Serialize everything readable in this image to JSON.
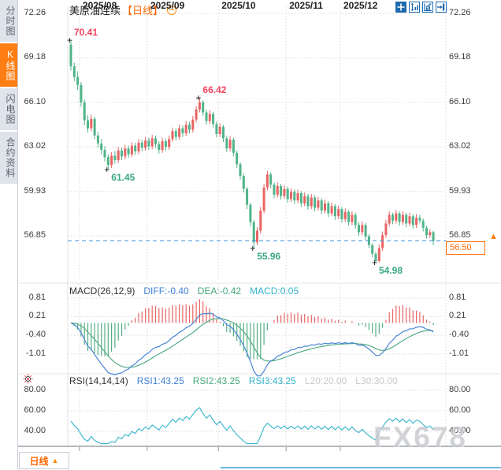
{
  "app": {
    "title": "美原油连续",
    "period_tag": "【日线】",
    "watermark": "FX678"
  },
  "sidebar": {
    "items": [
      {
        "key": "fenshitu",
        "label": "分时图",
        "active": false
      },
      {
        "key": "kxiantu",
        "label": "K线图",
        "active": true
      },
      {
        "key": "shandiantu",
        "label": "闪电图",
        "active": false
      },
      {
        "key": "heyueziliao",
        "label": "合约资料",
        "active": false
      }
    ]
  },
  "toolbar": {
    "icons": [
      "crosshair",
      "axis-scale",
      "auto-scale",
      "pan-right"
    ]
  },
  "period_selector": {
    "label": "日线",
    "arrow": "▲"
  },
  "current_price": {
    "label": "56.50",
    "value": 56.5
  },
  "macd": {
    "title": "MACD(26,12,9)",
    "diff": "DIFF:-0.40",
    "dea": "DEA:-0.42",
    "macd": "MACD:0.05",
    "axis_labels": [
      "0.81",
      "0.21",
      "-0.40",
      "-1.01"
    ],
    "axis_values": [
      0.81,
      0.21,
      -0.4,
      -1.01
    ]
  },
  "rsi": {
    "title": "RSI(14,14,14)",
    "rsi1": "RSI1:43.25",
    "rsi2": "RSI2:43.25",
    "rsi3": "RSI3:43.25",
    "l20": "L20:20.00",
    "l30": "L30:30.00",
    "axis_labels": [
      "80.00",
      "60.00",
      "40.00"
    ],
    "axis_values": [
      80,
      60,
      40
    ]
  },
  "colors": {
    "up_candle": "#e86463",
    "down_candle": "#4fb489",
    "accent_orange": "#ff6a00",
    "line_blue": "#4a86d5",
    "line_green": "#53ae84",
    "line_cyan": "#35b3cc",
    "icon_blue": "#1e6ab0",
    "grid": "#d9d9d9",
    "label_red": "#f0435c",
    "label_green": "#3aa786",
    "current_line_blue": "#3f8fe0"
  },
  "chart_data": {
    "type": "candlestick",
    "symbol": "美原油连续",
    "period": "日线",
    "y_axis_labels": [
      "72.26",
      "69.18",
      "66.10",
      "63.02",
      "59.93",
      "56.85"
    ],
    "y_axis_values": [
      72.26,
      69.18,
      66.1,
      63.02,
      59.93,
      56.85
    ],
    "months": {
      "labels": [
        "2025/08",
        "2025/09",
        "2025/10",
        "2025/11",
        "2025/12"
      ],
      "boundary_indices": [
        3,
        23,
        44,
        64,
        80
      ]
    },
    "current_price": 56.5,
    "candle_format": [
      "open",
      "high",
      "low",
      "close"
    ],
    "candles": [
      [
        70.1,
        70.41,
        68.3,
        68.6
      ],
      [
        68.6,
        68.85,
        67.55,
        67.85
      ],
      [
        67.85,
        68.25,
        66.95,
        67.3
      ],
      [
        67.3,
        67.5,
        65.8,
        66.1
      ],
      [
        66.1,
        66.3,
        64.5,
        64.85
      ],
      [
        64.85,
        65.2,
        64.0,
        64.3
      ],
      [
        64.3,
        65.25,
        64.1,
        64.95
      ],
      [
        64.95,
        65.1,
        63.55,
        63.8
      ],
      [
        63.8,
        64.05,
        62.95,
        63.25
      ],
      [
        63.25,
        63.55,
        62.5,
        62.8
      ],
      [
        62.8,
        63.05,
        62.0,
        62.3
      ],
      [
        62.3,
        62.5,
        61.45,
        61.75
      ],
      [
        61.75,
        62.65,
        61.55,
        62.4
      ],
      [
        62.4,
        62.7,
        61.85,
        62.1
      ],
      [
        62.1,
        63.0,
        61.9,
        62.75
      ],
      [
        62.75,
        62.95,
        62.1,
        62.35
      ],
      [
        62.35,
        63.15,
        62.15,
        62.9
      ],
      [
        62.9,
        63.1,
        62.25,
        62.5
      ],
      [
        62.5,
        63.35,
        62.3,
        63.1
      ],
      [
        63.1,
        63.3,
        62.45,
        62.7
      ],
      [
        62.7,
        63.55,
        62.5,
        63.3
      ],
      [
        63.3,
        63.5,
        62.7,
        62.95
      ],
      [
        62.95,
        63.7,
        62.75,
        63.45
      ],
      [
        63.45,
        63.65,
        62.8,
        63.05
      ],
      [
        63.05,
        63.85,
        62.85,
        63.6
      ],
      [
        63.6,
        63.8,
        62.95,
        63.2
      ],
      [
        63.2,
        63.4,
        62.55,
        62.8
      ],
      [
        62.8,
        63.65,
        62.6,
        63.4
      ],
      [
        63.4,
        63.6,
        62.75,
        63.0
      ],
      [
        63.0,
        63.8,
        62.8,
        63.55
      ],
      [
        63.55,
        64.35,
        63.35,
        64.1
      ],
      [
        64.1,
        64.3,
        63.45,
        63.7
      ],
      [
        63.7,
        64.55,
        63.5,
        64.3
      ],
      [
        64.3,
        64.5,
        63.7,
        63.95
      ],
      [
        63.95,
        64.8,
        63.75,
        64.55
      ],
      [
        64.55,
        64.75,
        63.95,
        64.2
      ],
      [
        64.2,
        65.15,
        64.0,
        64.9
      ],
      [
        64.9,
        65.85,
        64.7,
        65.6
      ],
      [
        65.6,
        66.42,
        65.4,
        66.1
      ],
      [
        66.1,
        66.25,
        65.15,
        65.4
      ],
      [
        65.4,
        65.6,
        64.55,
        64.8
      ],
      [
        64.8,
        65.55,
        64.6,
        65.3
      ],
      [
        65.3,
        65.45,
        64.35,
        64.6
      ],
      [
        64.6,
        64.8,
        63.65,
        63.9
      ],
      [
        63.9,
        64.65,
        63.7,
        64.4
      ],
      [
        64.4,
        64.55,
        63.35,
        63.6
      ],
      [
        63.6,
        63.8,
        62.65,
        62.9
      ],
      [
        62.9,
        63.75,
        62.7,
        63.5
      ],
      [
        63.5,
        63.65,
        62.35,
        62.6
      ],
      [
        62.6,
        62.75,
        61.55,
        61.8
      ],
      [
        61.8,
        61.95,
        60.75,
        61.0
      ],
      [
        61.0,
        61.15,
        59.85,
        60.1
      ],
      [
        60.1,
        60.25,
        58.7,
        59.0
      ],
      [
        59.0,
        59.15,
        57.5,
        57.8
      ],
      [
        57.8,
        57.95,
        55.96,
        56.4
      ],
      [
        56.4,
        57.45,
        56.2,
        57.2
      ],
      [
        57.2,
        58.85,
        57.0,
        58.6
      ],
      [
        58.6,
        60.45,
        58.4,
        60.2
      ],
      [
        60.2,
        61.35,
        60.0,
        61.1
      ],
      [
        61.1,
        61.25,
        60.15,
        60.4
      ],
      [
        60.4,
        60.55,
        59.45,
        59.7
      ],
      [
        59.7,
        60.55,
        59.5,
        60.3
      ],
      [
        60.3,
        60.45,
        59.35,
        59.6
      ],
      [
        59.6,
        60.35,
        59.4,
        60.1
      ],
      [
        60.1,
        60.25,
        59.15,
        59.4
      ],
      [
        59.4,
        60.15,
        59.2,
        59.9
      ],
      [
        59.9,
        60.05,
        59.05,
        59.3
      ],
      [
        59.3,
        60.05,
        59.1,
        59.8
      ],
      [
        59.8,
        59.95,
        58.85,
        59.1
      ],
      [
        59.1,
        59.85,
        58.9,
        59.6
      ],
      [
        59.6,
        59.75,
        58.65,
        58.9
      ],
      [
        58.9,
        59.75,
        58.7,
        59.5
      ],
      [
        59.5,
        59.65,
        58.55,
        58.8
      ],
      [
        58.8,
        59.55,
        58.6,
        59.3
      ],
      [
        59.3,
        59.45,
        58.35,
        58.6
      ],
      [
        58.6,
        59.35,
        58.4,
        59.1
      ],
      [
        59.1,
        59.25,
        58.15,
        58.4
      ],
      [
        58.4,
        59.15,
        58.2,
        58.9
      ],
      [
        58.9,
        59.05,
        57.95,
        58.2
      ],
      [
        58.2,
        58.95,
        58.0,
        58.7
      ],
      [
        58.7,
        58.85,
        57.75,
        58.0
      ],
      [
        58.0,
        58.75,
        57.8,
        58.5
      ],
      [
        58.5,
        58.65,
        57.55,
        57.8
      ],
      [
        57.8,
        58.55,
        57.6,
        58.3
      ],
      [
        58.3,
        58.45,
        57.35,
        57.6
      ],
      [
        57.6,
        57.8,
        56.85,
        57.1
      ],
      [
        57.1,
        57.85,
        56.9,
        57.6
      ],
      [
        57.6,
        57.75,
        56.55,
        56.8
      ],
      [
        56.8,
        56.95,
        56.0,
        56.2
      ],
      [
        56.2,
        56.35,
        55.35,
        55.6
      ],
      [
        55.6,
        55.75,
        54.98,
        55.1
      ],
      [
        55.1,
        56.25,
        55.0,
        56.0
      ],
      [
        56.0,
        57.15,
        55.8,
        56.9
      ],
      [
        56.9,
        57.95,
        56.7,
        57.7
      ],
      [
        57.7,
        58.55,
        57.5,
        58.3
      ],
      [
        58.3,
        58.45,
        57.65,
        57.9
      ],
      [
        57.9,
        58.65,
        57.7,
        58.4
      ],
      [
        58.4,
        58.55,
        57.55,
        57.8
      ],
      [
        57.8,
        58.55,
        57.6,
        58.3
      ],
      [
        58.3,
        58.45,
        57.45,
        57.7
      ],
      [
        57.7,
        58.45,
        57.5,
        58.2
      ],
      [
        58.2,
        58.35,
        57.35,
        57.6
      ],
      [
        57.6,
        58.35,
        57.4,
        58.1
      ],
      [
        58.1,
        58.3,
        57.7,
        57.9
      ],
      [
        57.9,
        58.05,
        57.15,
        57.4
      ],
      [
        57.4,
        57.55,
        56.65,
        56.9
      ],
      [
        56.9,
        57.3,
        56.7,
        57.1
      ],
      [
        57.1,
        57.2,
        56.2,
        56.5
      ]
    ],
    "annotations": [
      {
        "text": "70.41",
        "index": 0,
        "side": "high",
        "color": "red"
      },
      {
        "text": "61.45",
        "index": 11,
        "side": "low",
        "color": "green"
      },
      {
        "text": "66.42",
        "index": 38,
        "side": "high",
        "color": "red"
      },
      {
        "text": "55.96",
        "index": 54,
        "side": "low",
        "color": "green"
      },
      {
        "text": "54.98",
        "index": 90,
        "side": "low",
        "color": "green"
      }
    ]
  }
}
